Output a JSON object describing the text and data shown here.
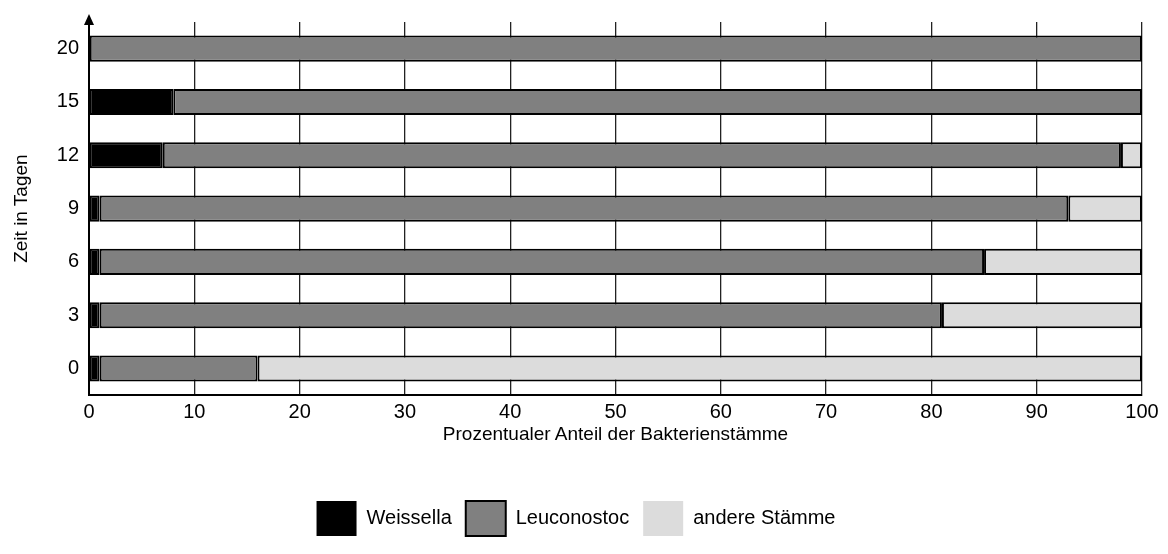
{
  "chart_data": {
    "type": "bar",
    "orientation": "horizontal",
    "stacked": true,
    "categories": [
      "20",
      "15",
      "12",
      "9",
      "6",
      "3",
      "0"
    ],
    "series": [
      {
        "name": "Weissella",
        "color": "#000000",
        "values": [
          0,
          8,
          7,
          1,
          1,
          1,
          1
        ]
      },
      {
        "name": "Leuconostoc",
        "color": "#808080",
        "values": [
          100,
          92,
          91,
          92,
          84,
          80,
          15
        ]
      },
      {
        "name": "andere Stämme",
        "color": "#dcdcdc",
        "values": [
          0,
          0,
          2,
          7,
          15,
          19,
          84
        ]
      }
    ],
    "xlim": [
      0,
      100
    ],
    "xticks": [
      0,
      10,
      20,
      30,
      40,
      50,
      60,
      70,
      80,
      90,
      100
    ],
    "xlabel": "Prozentualer Anteil der Bakterienstämme",
    "ylabel": "Zeit in Tagen",
    "grid": "x",
    "legend": "bottom"
  }
}
